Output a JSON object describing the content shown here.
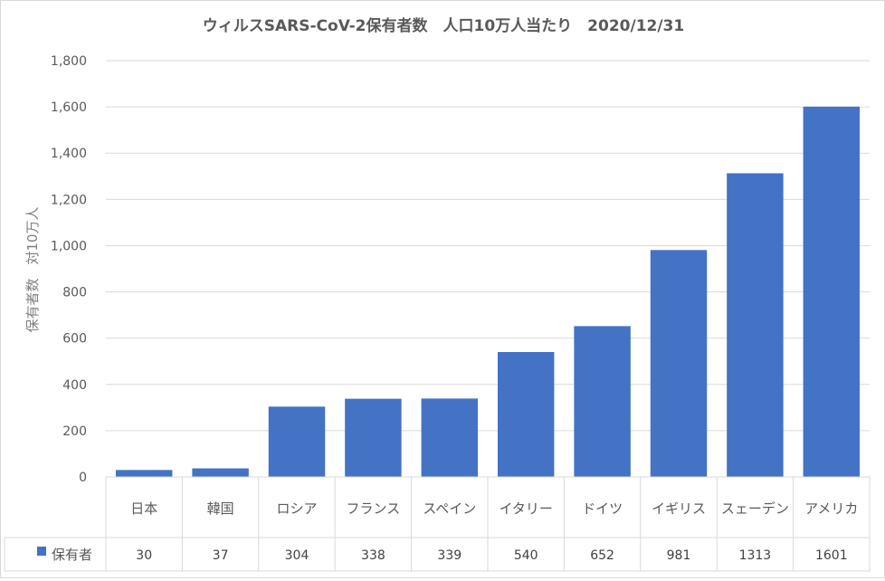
{
  "chart_data": {
    "type": "bar",
    "title": "ウィルスSARS-CoV-2保有者数　人口10万人当たり　2020/12/31",
    "ylabel": "保有者数　対10万人",
    "xlabel": "",
    "ylim": [
      0,
      1800
    ],
    "ytick_step": 200,
    "yticks": [
      "0",
      "200",
      "400",
      "600",
      "800",
      "1,000",
      "1,200",
      "1,400",
      "1,600",
      "1,800"
    ],
    "grid": true,
    "categories": [
      "日本",
      "韓国",
      "ロシア",
      "フランス",
      "スペイン",
      "イタリー",
      "ドイツ",
      "イギリス",
      "スェーデン",
      "アメリカ"
    ],
    "series": [
      {
        "name": "保有者",
        "color": "#4472c4",
        "values": [
          30,
          37,
          304,
          338,
          339,
          540,
          652,
          981,
          1313,
          1601
        ]
      }
    ],
    "data_table": true
  }
}
